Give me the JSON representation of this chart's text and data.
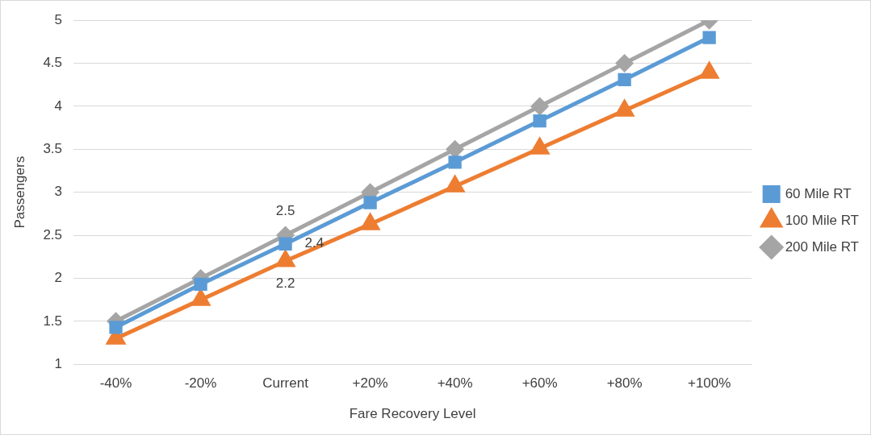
{
  "chart_data": {
    "type": "line",
    "xlabel": "Fare Recovery Level",
    "ylabel": "Passengers",
    "categories": [
      "-40%",
      "-20%",
      "Current",
      "+20%",
      "+40%",
      "+60%",
      "+80%",
      "+100%"
    ],
    "series": [
      {
        "name": "60 Mile RT",
        "color": "#5b9bd5",
        "marker": "square",
        "values": [
          1.43,
          1.93,
          2.4,
          2.88,
          3.35,
          3.83,
          4.31,
          4.8
        ],
        "value_labels": [
          null,
          null,
          "2.4",
          null,
          null,
          null,
          null,
          null
        ]
      },
      {
        "name": "100 Mile RT",
        "color": "#ed7d31",
        "marker": "triangle",
        "values": [
          1.3,
          1.75,
          2.2,
          2.63,
          3.07,
          3.51,
          3.95,
          4.39
        ],
        "value_labels": [
          null,
          null,
          "2.2",
          null,
          null,
          null,
          null,
          null
        ]
      },
      {
        "name": "200 Mile RT",
        "color": "#a5a5a5",
        "marker": "diamond",
        "values": [
          1.5,
          2.0,
          2.5,
          3.0,
          3.5,
          4.0,
          4.5,
          5.0
        ],
        "value_labels": [
          null,
          null,
          "2.5",
          null,
          null,
          null,
          null,
          null
        ]
      }
    ],
    "ylim": [
      1,
      5
    ],
    "yticks": [
      1,
      1.5,
      2,
      2.5,
      3,
      3.5,
      4,
      4.5,
      5
    ],
    "grid": "y",
    "legend": "right"
  }
}
